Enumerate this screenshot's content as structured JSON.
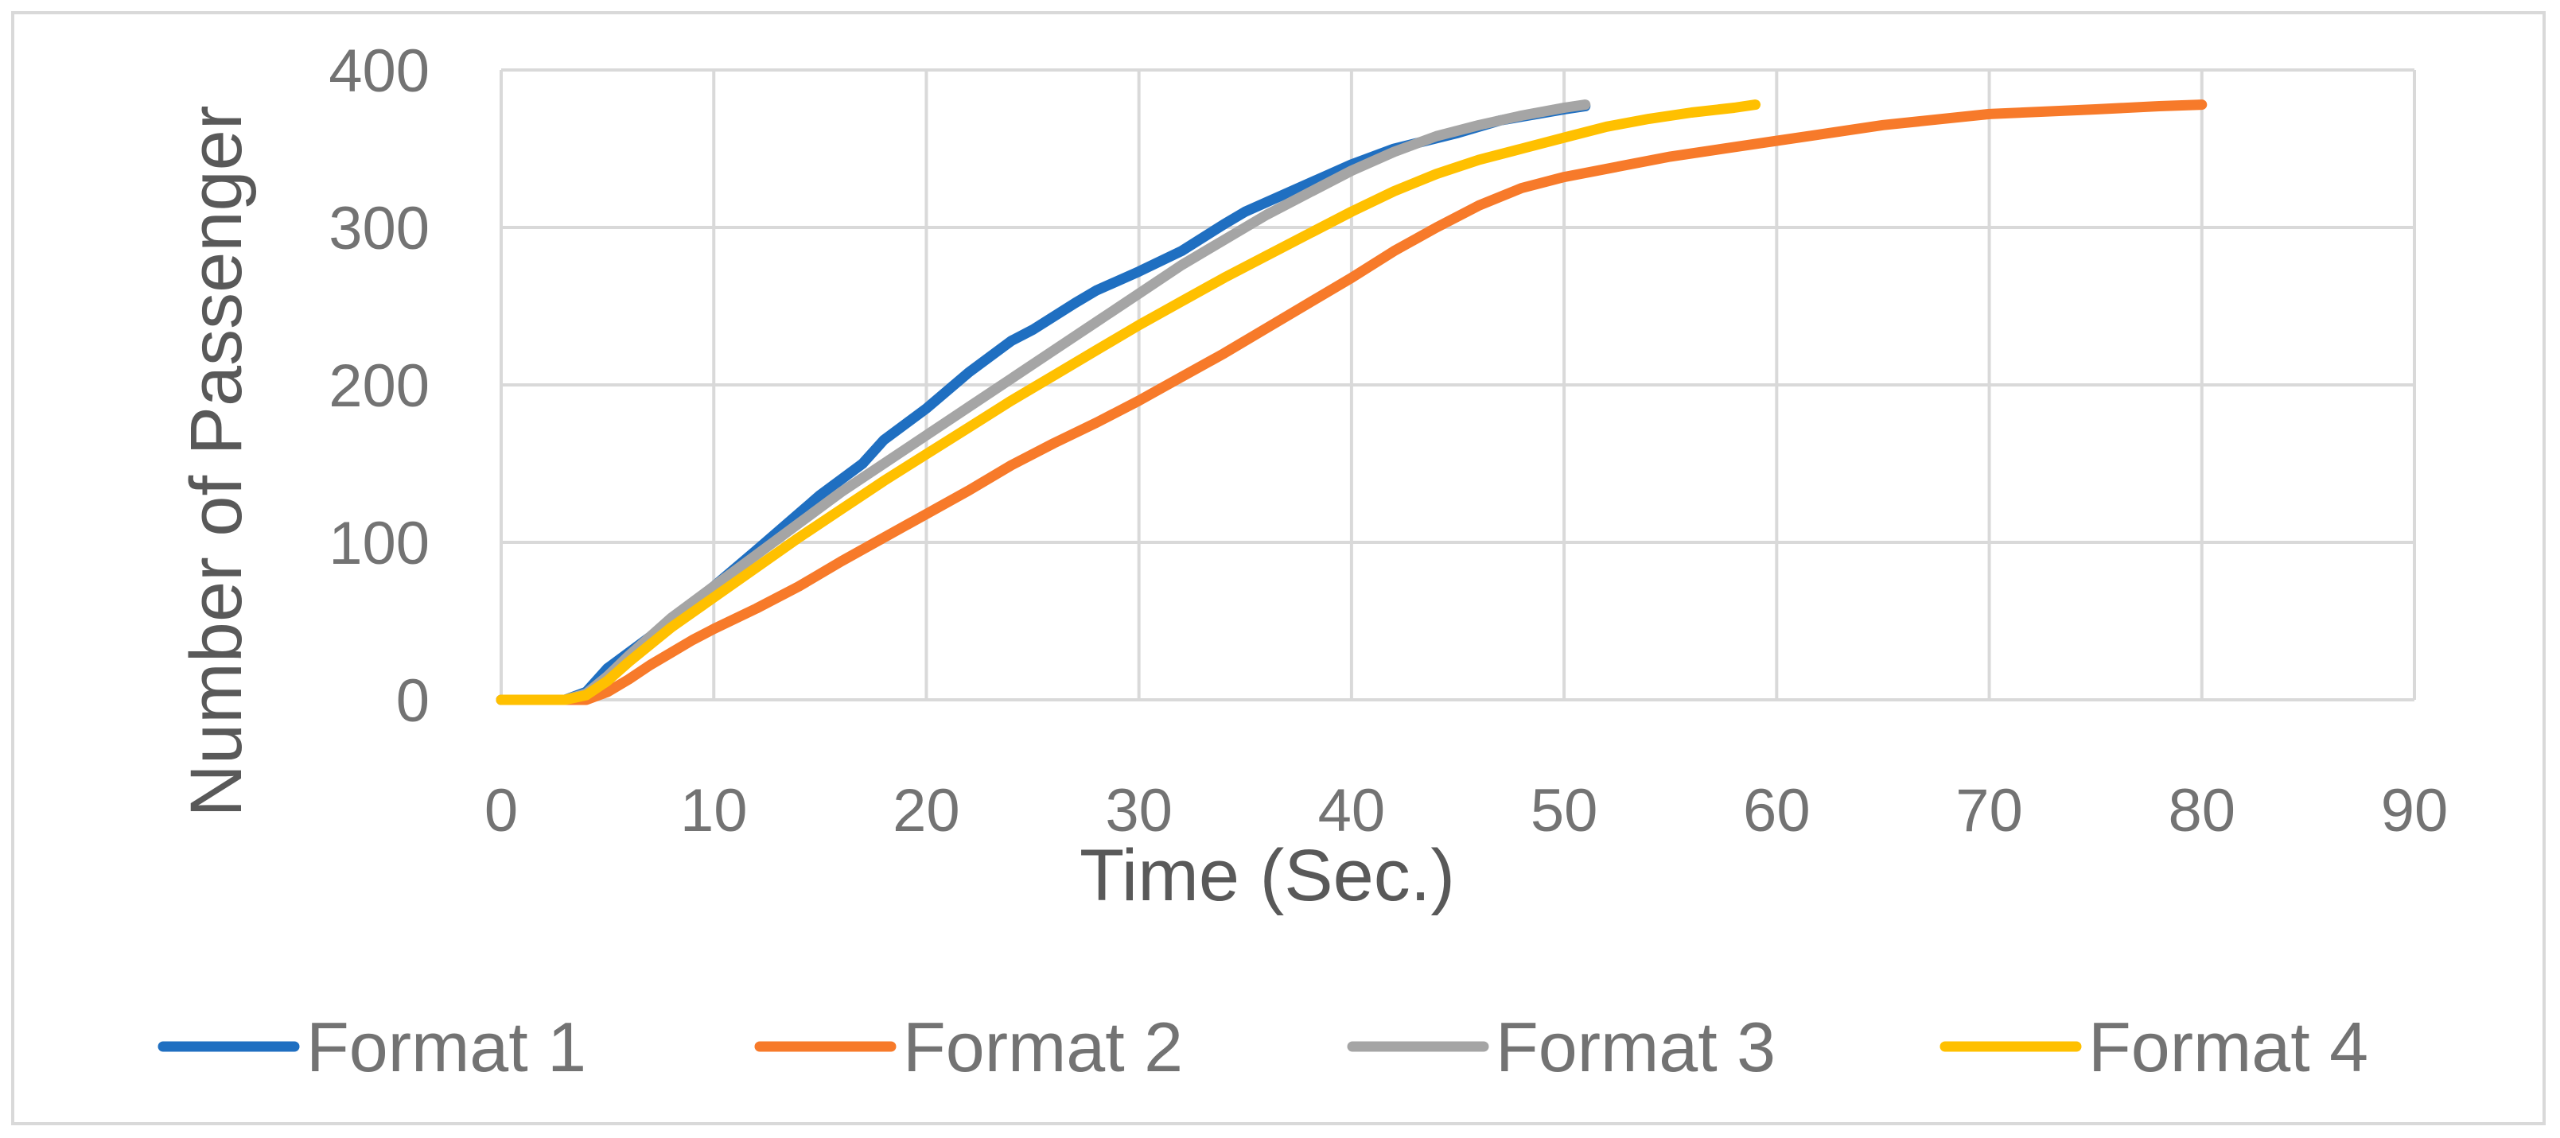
{
  "chart_data": {
    "type": "line",
    "title": "",
    "xlabel": "Time (Sec.)",
    "ylabel": "Number of Passenger",
    "xlim": [
      0,
      90
    ],
    "ylim": [
      0,
      400
    ],
    "xticks": [
      0,
      10,
      20,
      30,
      40,
      50,
      60,
      70,
      80,
      90
    ],
    "yticks": [
      0,
      100,
      200,
      300,
      400
    ],
    "grid": true,
    "legend_position": "bottom",
    "series": [
      {
        "name": "Format 1",
        "color": "#1f6fc1",
        "x": [
          0,
          3,
          4,
          5,
          7,
          10,
          12,
          15,
          17,
          18,
          20,
          22,
          24,
          25,
          27,
          28,
          30,
          32,
          34,
          35,
          37,
          40,
          42,
          45,
          47,
          50,
          51
        ],
        "y": [
          0,
          0,
          5,
          20,
          40,
          72,
          95,
          130,
          150,
          165,
          185,
          208,
          228,
          235,
          252,
          260,
          272,
          285,
          302,
          310,
          322,
          340,
          350,
          360,
          368,
          375,
          377
        ]
      },
      {
        "name": "Format 2",
        "color": "#f77a2a",
        "x": [
          0,
          3,
          4,
          5,
          6,
          7,
          8,
          9,
          10,
          12,
          14,
          16,
          18,
          20,
          22,
          24,
          26,
          28,
          30,
          32,
          34,
          36,
          38,
          40,
          42,
          44,
          46,
          48,
          50,
          55,
          60,
          65,
          70,
          75,
          78,
          80
        ],
        "y": [
          0,
          0,
          0,
          5,
          13,
          22,
          30,
          38,
          45,
          58,
          72,
          88,
          103,
          118,
          133,
          149,
          163,
          176,
          190,
          205,
          220,
          236,
          252,
          268,
          285,
          300,
          314,
          325,
          332,
          345,
          355,
          365,
          372,
          375,
          377,
          378
        ]
      },
      {
        "name": "Format 3",
        "color": "#a5a5a5",
        "x": [
          0,
          3,
          4,
          5,
          6,
          8,
          10,
          12,
          14,
          16,
          18,
          20,
          22,
          24,
          26,
          28,
          30,
          32,
          34,
          36,
          38,
          40,
          42,
          44,
          46,
          48,
          50,
          51
        ],
        "y": [
          0,
          0,
          4,
          15,
          28,
          52,
          72,
          92,
          112,
          132,
          150,
          168,
          186,
          204,
          222,
          240,
          258,
          276,
          292,
          308,
          322,
          336,
          348,
          358,
          365,
          371,
          376,
          378
        ]
      },
      {
        "name": "Format 4",
        "color": "#ffc000",
        "x": [
          0,
          3,
          4,
          5,
          6,
          8,
          10,
          12,
          14,
          16,
          18,
          20,
          22,
          24,
          26,
          28,
          30,
          32,
          34,
          36,
          38,
          40,
          42,
          44,
          46,
          48,
          50,
          52,
          54,
          56,
          58,
          59
        ],
        "y": [
          0,
          0,
          3,
          12,
          24,
          46,
          65,
          84,
          103,
          121,
          139,
          156,
          173,
          190,
          206,
          222,
          238,
          253,
          268,
          282,
          296,
          310,
          323,
          334,
          343,
          350,
          357,
          364,
          369,
          373,
          376,
          378
        ]
      }
    ]
  }
}
